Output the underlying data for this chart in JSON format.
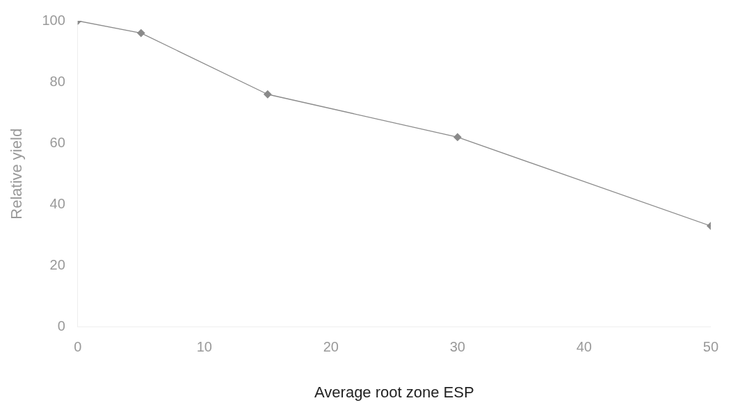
{
  "chart_data": {
    "type": "line",
    "xlabel": "Average root zone ESP",
    "ylabel": "Relative yield",
    "x": [
      0,
      5,
      15,
      30,
      50
    ],
    "series": [
      {
        "color": "#8a8a8a",
        "values": [
          100,
          96,
          76,
          62,
          33
        ]
      }
    ],
    "xlim": [
      0,
      50
    ],
    "xticks": [
      0,
      10,
      20,
      30,
      40,
      50
    ],
    "ylim": [
      0,
      100
    ],
    "yticks": [
      0,
      20,
      40,
      60,
      80,
      100
    ],
    "grid": false,
    "legend": false,
    "marker": "diamond",
    "line_style": "solid"
  }
}
